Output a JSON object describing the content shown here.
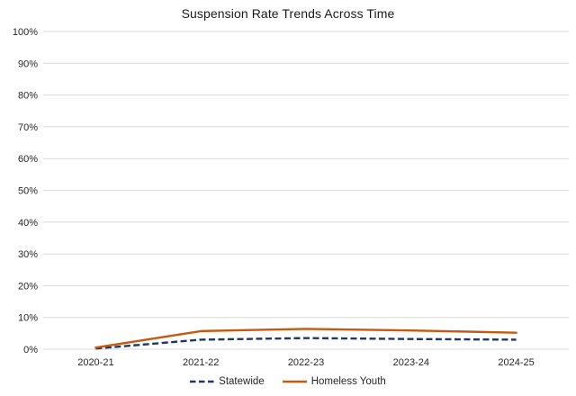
{
  "chart_data": {
    "type": "line",
    "title": "Suspension Rate Trends Across Time",
    "categories": [
      "2020-21",
      "2021-22",
      "2022-23",
      "2023-24",
      "2024-25"
    ],
    "series": [
      {
        "name": "Statewide",
        "values": [
          0.2,
          3.0,
          3.5,
          3.2,
          3.0
        ],
        "color": "#1F3864",
        "style": "dashed"
      },
      {
        "name": "Homeless Youth",
        "values": [
          0.5,
          5.7,
          6.4,
          5.9,
          5.2
        ],
        "color": "#C55A11",
        "style": "solid"
      }
    ],
    "xlabel": "",
    "ylabel": "",
    "ylim": [
      0,
      100
    ],
    "ytick_step": 10,
    "ytick_labels": [
      "0%",
      "10%",
      "20%",
      "30%",
      "40%",
      "50%",
      "60%",
      "70%",
      "80%",
      "90%",
      "100%"
    ],
    "grid": "horizontal",
    "gridline_color": "#D9D9D9",
    "axis_text_color": "#262626",
    "title_color": "#1a1a1a",
    "legend_position": "bottom-center"
  }
}
